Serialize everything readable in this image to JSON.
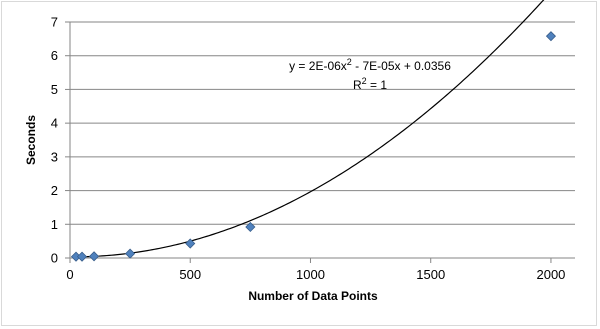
{
  "chart_data": {
    "type": "scatter",
    "title": "",
    "xlabel": "Number of Data Points",
    "ylabel": "Seconds",
    "xlim": [
      0,
      2100
    ],
    "ylim": [
      0,
      7
    ],
    "x_ticks": [
      0,
      500,
      1000,
      1500,
      2000
    ],
    "y_ticks": [
      0,
      1,
      2,
      3,
      4,
      5,
      6,
      7
    ],
    "grid": "horizontal",
    "legend": "none",
    "marker": "diamond",
    "colors": {
      "marker": "#4f81bd",
      "marker_edge": "#385d8a",
      "gridline": "#868686",
      "trendline": "#000000"
    },
    "series": [
      {
        "x": [
          25,
          50,
          100,
          250,
          500,
          750,
          2000
        ],
        "y": [
          0.04,
          0.04,
          0.05,
          0.13,
          0.43,
          0.92,
          6.58
        ]
      }
    ],
    "trendline": {
      "type": "polynomial",
      "coefficients": [
        2e-06,
        -7e-05,
        0.0356
      ],
      "equation_prefix": "y = 2E-06x",
      "equation_superscript": "2",
      "equation_suffix": " - 7E-05x + 0.0356",
      "r2_prefix": "R",
      "r2_superscript": "2",
      "r2_suffix": " = 1"
    }
  }
}
